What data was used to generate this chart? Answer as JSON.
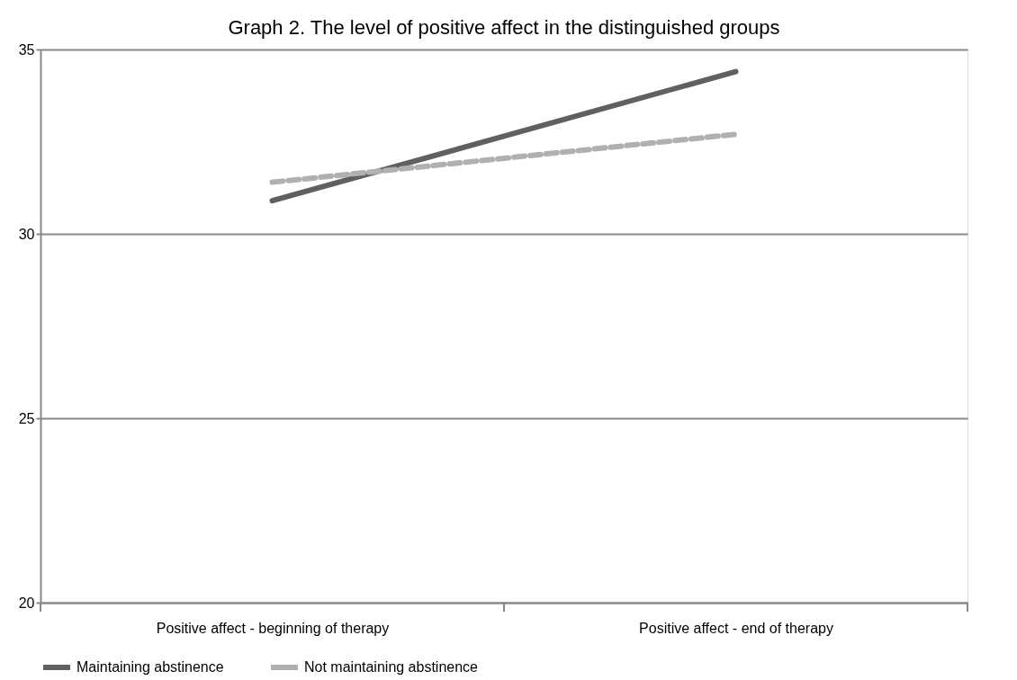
{
  "chart_data": {
    "type": "line",
    "title": "Graph 2. The level of positive affect in the distinguished groups",
    "categories": [
      "Positive affect - beginning of therapy",
      "Positive affect - end of therapy"
    ],
    "series": [
      {
        "name": "Maintaining abstinence",
        "color": "#606060",
        "values": [
          30.9,
          34.4
        ],
        "line_style": "solid"
      },
      {
        "name": "Not maintaining abstinence",
        "color": "#b0b0b0",
        "values": [
          31.4,
          32.7
        ],
        "line_style": "dashed"
      }
    ],
    "ylim": [
      20,
      35
    ],
    "yticks": [
      20,
      25,
      30,
      35
    ],
    "grid": "y",
    "legend": "bottom",
    "marker": "none"
  }
}
